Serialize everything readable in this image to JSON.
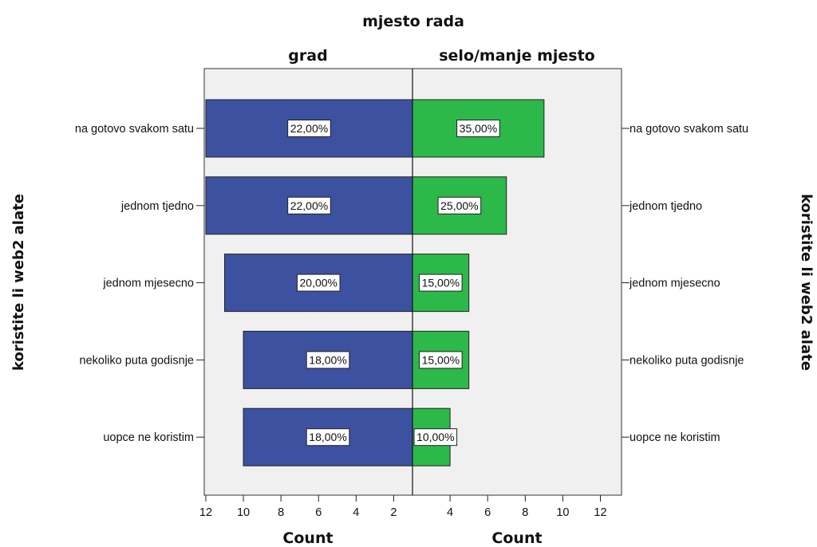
{
  "chart_data": {
    "type": "bar",
    "title": "mjesto rada",
    "panels": [
      "grad",
      "selo/manje mjesto"
    ],
    "ylabel": "koristite li web2 alate",
    "xlabel": "Count",
    "categories": [
      "na gotovo svakom satu",
      "jednom tjedno",
      "jednom mjesecno",
      "nekoliko puta godisnje",
      "uopce ne koristim"
    ],
    "series": [
      {
        "values": [
          11,
          11,
          10,
          9,
          9
        ],
        "labels": [
          "22,00%",
          "22,00%",
          "20,00%",
          "18,00%",
          "18,00%"
        ],
        "color": "#3d51a1"
      },
      {
        "values": [
          7,
          5,
          3,
          3,
          2
        ],
        "labels": [
          "35,00%",
          "25,00%",
          "15,00%",
          "15,00%",
          "10,00%"
        ],
        "color": "#2db84a"
      }
    ],
    "left_ticks": [
      "12",
      "10",
      "8",
      "6",
      "4",
      "2"
    ],
    "right_ticks": [
      "2",
      "4",
      "6",
      "8",
      "10",
      "12"
    ],
    "xlim": [
      0,
      12
    ],
    "grid": false,
    "background_color": "#f0f0f0"
  }
}
